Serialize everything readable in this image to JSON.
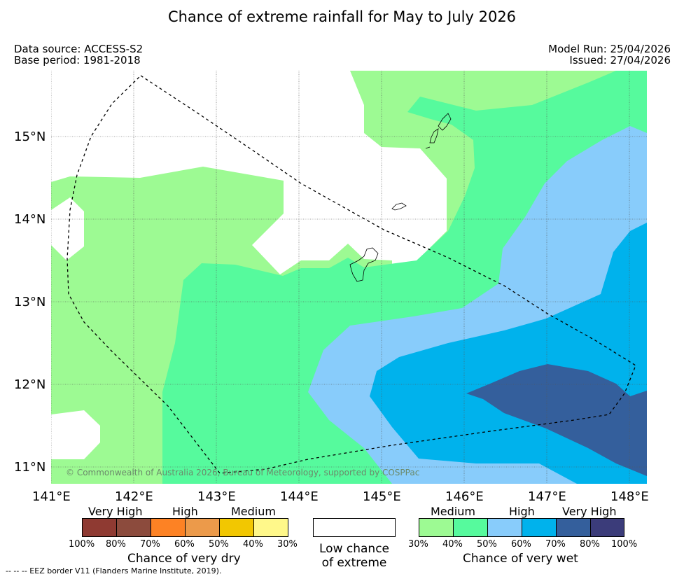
{
  "title": "Chance of extreme rainfall for May to July 2026",
  "info": {
    "data_source": "Data source: ACCESS-S2",
    "base_period": "Base period: 1981-2018",
    "model_run": "Model Run: 25/04/2026",
    "issued": "Issued: 27/04/2026"
  },
  "map": {
    "lat_labels": [
      "15°N",
      "14°N",
      "13°N",
      "12°N",
      "11°N"
    ],
    "lon_labels": [
      "141°E",
      "142°E",
      "143°E",
      "144°E",
      "145°E",
      "146°E",
      "147°E",
      "148°E"
    ],
    "copyright": "© Commonwealth of Australia 2026, Bureau of Meteorology, supported by COSPPac",
    "colors": {
      "wet_30_40": "#9dfa93",
      "wet_40_50": "#56fa9d",
      "wet_50_60": "#88ccfb",
      "wet_60_70": "#00b2ec",
      "wet_70_80": "#345f9c",
      "wet_80_100": "#3b3c7a"
    }
  },
  "legend": {
    "dry": {
      "headers": [
        "Very High",
        "High",
        "Medium"
      ],
      "colors": [
        "#8f3a32",
        "#8c4b3d",
        "#fd8224",
        "#ec9a4a",
        "#f2c701",
        "#fff88a"
      ],
      "ticks": [
        "100%",
        "80%",
        "70%",
        "60%",
        "50%",
        "40%",
        "30%"
      ],
      "caption": "Chance of very dry"
    },
    "low": {
      "caption_line1": "Low chance",
      "caption_line2": "of extreme"
    },
    "wet": {
      "headers": [
        "Medium",
        "High",
        "Very High"
      ],
      "colors": [
        "#9dfa93",
        "#56fa9d",
        "#88ccfb",
        "#00b2ec",
        "#345f9c",
        "#3b3c7a"
      ],
      "ticks": [
        "30%",
        "40%",
        "50%",
        "60%",
        "70%",
        "80%",
        "100%"
      ],
      "caption": "Chance of very wet"
    }
  },
  "footnote": "--  --  -- EEZ border V11 (Flanders Marine Institute, 2019)."
}
